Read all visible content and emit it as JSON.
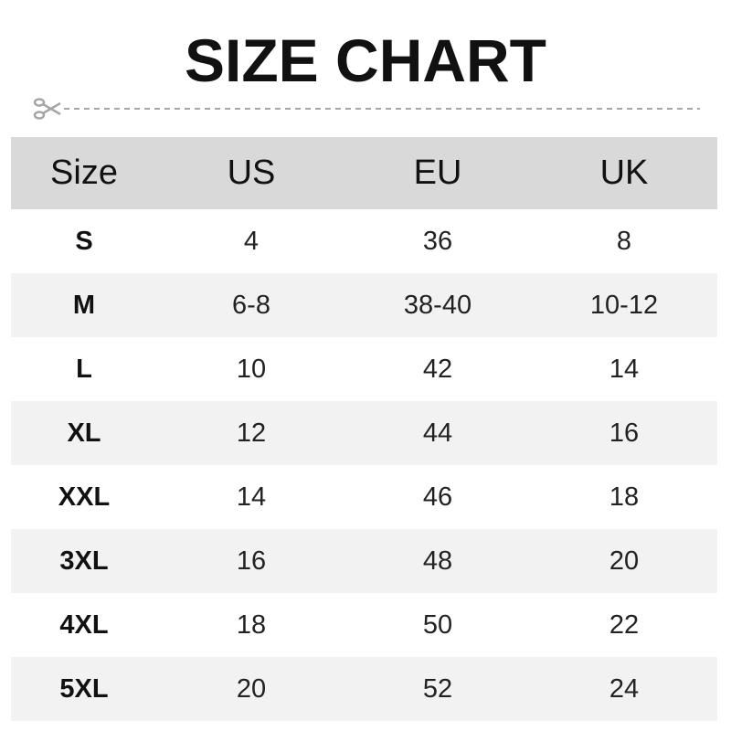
{
  "title": "SIZE CHART",
  "icons": {
    "cut_line": "scissors-icon"
  },
  "colors": {
    "header_bg": "#d9d9d9",
    "alt_row_bg": "#f2f2f2",
    "cut_line": "#a6a6a6"
  },
  "chart_data": {
    "type": "table",
    "title": "SIZE CHART",
    "columns": [
      "Size",
      "US",
      "EU",
      "UK"
    ],
    "rows": [
      [
        "S",
        "4",
        "36",
        "8"
      ],
      [
        "M",
        "6-8",
        "38-40",
        "10-12"
      ],
      [
        "L",
        "10",
        "42",
        "14"
      ],
      [
        "XL",
        "12",
        "44",
        "16"
      ],
      [
        "XXL",
        "14",
        "46",
        "18"
      ],
      [
        "3XL",
        "16",
        "48",
        "20"
      ],
      [
        "4XL",
        "18",
        "50",
        "22"
      ],
      [
        "5XL",
        "20",
        "52",
        "24"
      ]
    ]
  }
}
